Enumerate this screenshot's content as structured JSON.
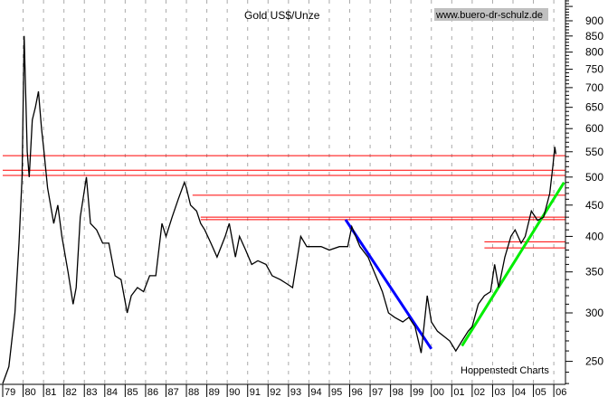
{
  "chart_data": {
    "type": "line",
    "title": "Gold US$/Unze",
    "source_label": "www.buero-dr-schulz.de",
    "credit": "Hoppenstedt Charts",
    "y_scale": "log",
    "ylim": [
      225,
      1000
    ],
    "xlim": [
      1979,
      2006.6
    ],
    "y_ticks": [
      900,
      850,
      800,
      750,
      700,
      650,
      600,
      550,
      500,
      450,
      400,
      350,
      300,
      250
    ],
    "x_tick_labels": [
      "79",
      "80",
      "81",
      "82",
      "83",
      "84",
      "85",
      "86",
      "87",
      "88",
      "89",
      "90",
      "91",
      "92",
      "93",
      "94",
      "95",
      "96",
      "97",
      "98",
      "99",
      "00",
      "01",
      "02",
      "03",
      "04",
      "05",
      "06"
    ],
    "grid": "vertical dashed",
    "colors": {
      "price": "#000000",
      "resistance": "#ff0000",
      "downtrend": "#0000ff",
      "uptrend": "#00ee00",
      "source_bg": "#c0c0c0"
    },
    "series": [
      {
        "x": [
          1979.0,
          1979.3,
          1979.6,
          1979.8,
          1979.95,
          1980.05,
          1980.2,
          1980.3,
          1980.45,
          1980.6,
          1980.75,
          1980.9,
          1981.0,
          1981.2,
          1981.5,
          1981.7,
          1981.9,
          1982.2,
          1982.45,
          1982.6,
          1982.8,
          1983.1,
          1983.3,
          1983.6,
          1983.9,
          1984.2,
          1984.5,
          1984.8,
          1985.1,
          1985.3,
          1985.6,
          1985.9,
          1986.2,
          1986.5,
          1986.8,
          1987.0,
          1987.3,
          1987.6,
          1987.9,
          1988.0,
          1988.2,
          1988.5,
          1988.7,
          1988.9,
          1989.2,
          1989.5,
          1989.9,
          1990.1,
          1990.4,
          1990.6,
          1990.9,
          1991.2,
          1991.5,
          1991.9,
          1992.2,
          1992.6,
          1992.9,
          1993.2,
          1993.6,
          1993.9,
          1994.2,
          1994.6,
          1995.0,
          1995.5,
          1995.9,
          1996.1,
          1996.5,
          1996.9,
          1997.2,
          1997.6,
          1997.9,
          1998.2,
          1998.6,
          1998.9,
          1999.2,
          1999.5,
          1999.8,
          2000.0,
          2000.3,
          2000.6,
          2000.9,
          2001.2,
          2001.5,
          2001.8,
          2002.0,
          2002.3,
          2002.6,
          2002.9,
          2003.1,
          2003.3,
          2003.6,
          2003.9,
          2004.1,
          2004.4,
          2004.6,
          2004.9,
          2005.2,
          2005.5,
          2005.8,
          2005.95,
          2006.05,
          2006.1
        ],
        "y": [
          230,
          245,
          300,
          390,
          500,
          850,
          550,
          500,
          620,
          650,
          690,
          600,
          560,
          480,
          420,
          450,
          400,
          350,
          310,
          330,
          430,
          500,
          420,
          410,
          390,
          390,
          345,
          340,
          300,
          320,
          330,
          325,
          345,
          345,
          420,
          400,
          430,
          460,
          490,
          480,
          450,
          440,
          420,
          410,
          390,
          370,
          400,
          420,
          370,
          400,
          380,
          360,
          365,
          360,
          345,
          340,
          335,
          330,
          400,
          385,
          385,
          385,
          380,
          385,
          385,
          415,
          385,
          370,
          350,
          325,
          300,
          295,
          290,
          295,
          285,
          258,
          320,
          290,
          280,
          275,
          270,
          260,
          270,
          280,
          285,
          310,
          320,
          325,
          360,
          330,
          370,
          400,
          410,
          390,
          400,
          440,
          425,
          430,
          470,
          520,
          560,
          545
        ]
      }
    ],
    "horizontal_lines": [
      {
        "value": 542,
        "from": 1979.0
      },
      {
        "value": 513,
        "from": 1979.0
      },
      {
        "value": 503,
        "from": 1979.0
      },
      {
        "value": 467,
        "from": 1988.3
      },
      {
        "value": 430,
        "from": 1988.7
      },
      {
        "value": 426,
        "from": 1988.7
      },
      {
        "value": 392,
        "from": 2002.6
      },
      {
        "value": 383,
        "from": 2002.6
      }
    ],
    "trend_lines": [
      {
        "kind": "downtrend",
        "from": [
          1995.8,
          426
        ],
        "to": [
          2000.0,
          262
        ]
      },
      {
        "kind": "uptrend",
        "from": [
          2001.5,
          265
        ],
        "to": [
          2006.5,
          490
        ]
      }
    ]
  }
}
